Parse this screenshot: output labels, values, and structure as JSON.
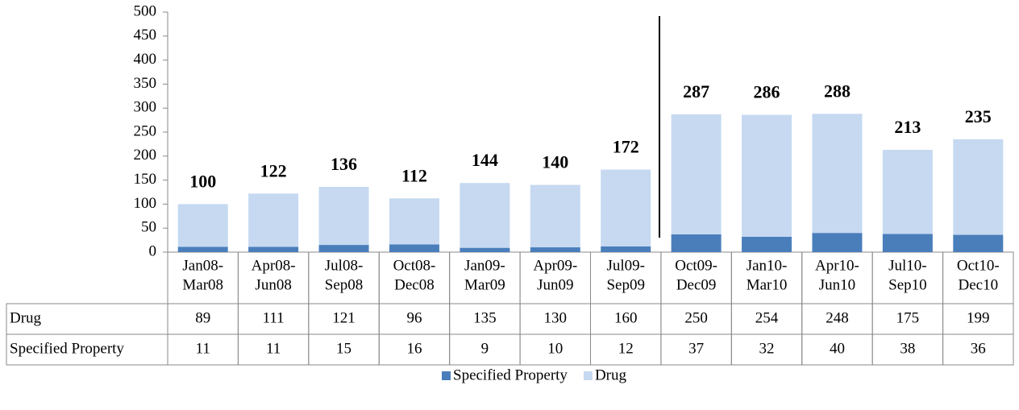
{
  "chart_data": {
    "type": "stacked-bar",
    "categories": [
      [
        "Jan08-",
        "Mar08"
      ],
      [
        "Apr08-",
        "Jun08"
      ],
      [
        "Jul08-",
        "Sep08"
      ],
      [
        "Oct08-",
        "Dec08"
      ],
      [
        "Jan09-",
        "Mar09"
      ],
      [
        "Apr09-",
        "Jun09"
      ],
      [
        "Jul09-",
        "Sep09"
      ],
      [
        "Oct09-",
        "Dec09"
      ],
      [
        "Jan10-",
        "Mar10"
      ],
      [
        "Apr10-",
        "Jun10"
      ],
      [
        "Jul10-",
        "Sep10"
      ],
      [
        "Oct10-",
        "Dec10"
      ]
    ],
    "series": [
      {
        "name": "Specified Property",
        "color": "#4a7ebb",
        "values": [
          11,
          11,
          15,
          16,
          9,
          10,
          12,
          37,
          32,
          40,
          38,
          36
        ]
      },
      {
        "name": "Drug",
        "color": "#c6d9f1",
        "values": [
          89,
          111,
          121,
          96,
          135,
          130,
          160,
          250,
          254,
          248,
          175,
          199
        ]
      }
    ],
    "totals": [
      100,
      122,
      136,
      112,
      144,
      140,
      172,
      287,
      286,
      288,
      213,
      235
    ],
    "ylim": [
      0,
      500
    ],
    "yticks": [
      0,
      50,
      100,
      150,
      200,
      250,
      300,
      350,
      400,
      450,
      500
    ]
  }
}
